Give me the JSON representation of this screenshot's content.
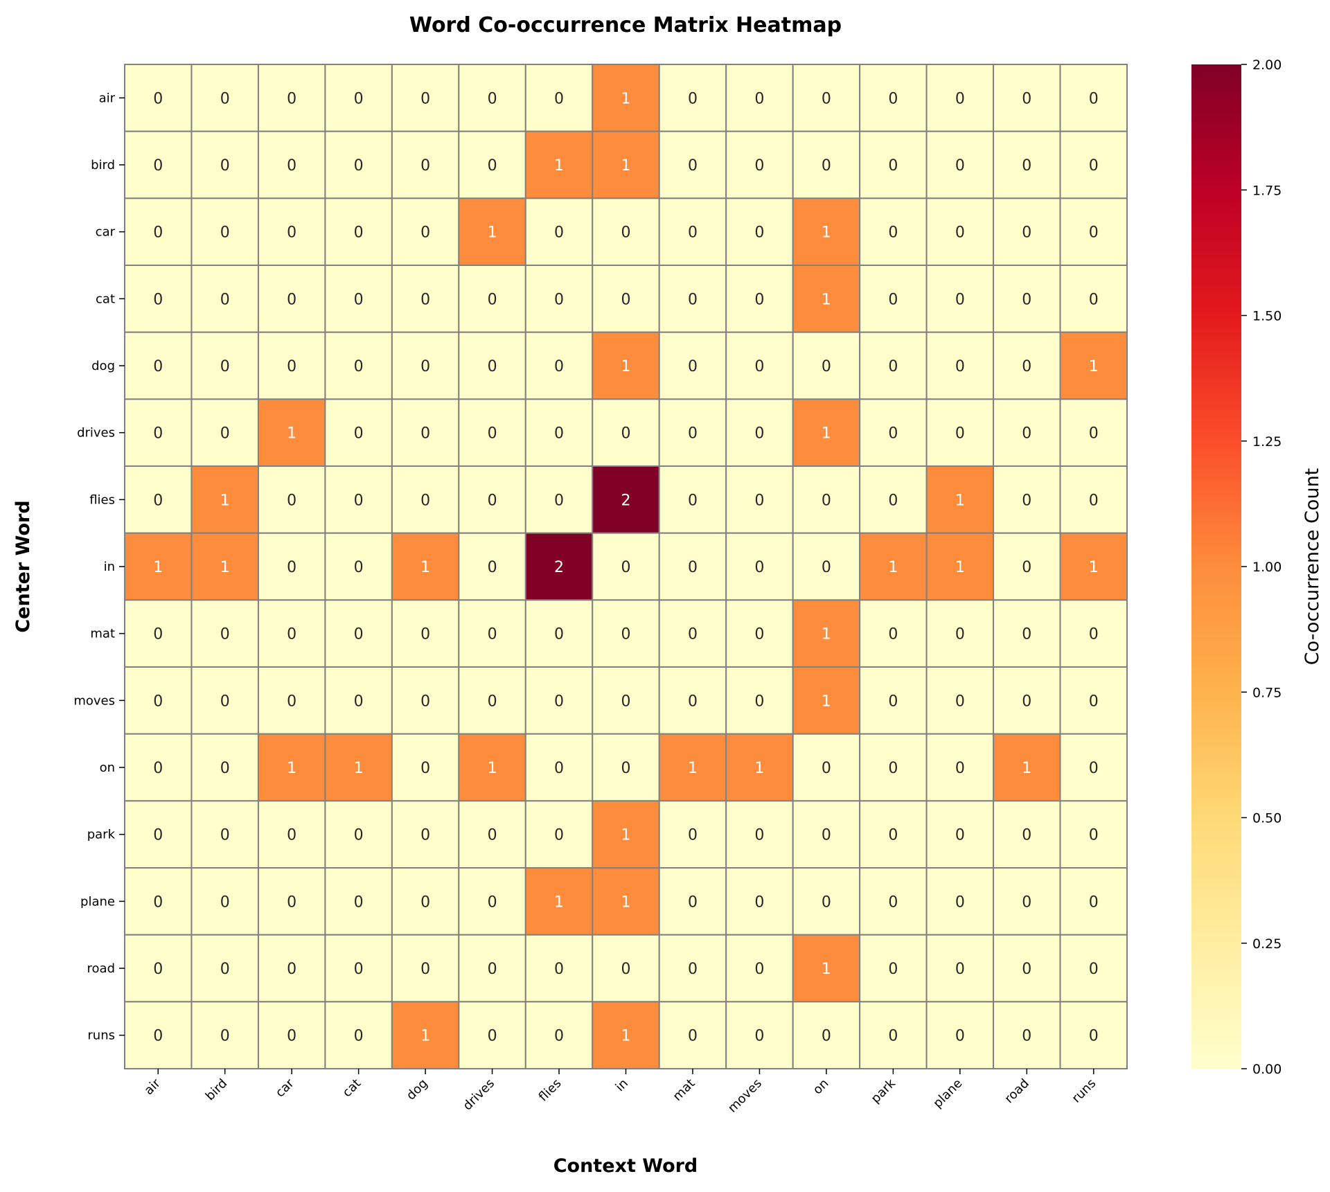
{
  "chart_data": {
    "type": "heatmap",
    "title": "Word Co-occurrence Matrix Heatmap",
    "xlabel": "Context Word",
    "ylabel": "Center Word",
    "colorbar_label": "Co-occurrence Count",
    "colormap": "YlOrRd",
    "colormap_stops": [
      "#ffffcc",
      "#ffeda0",
      "#fed976",
      "#feb24c",
      "#fd8d3c",
      "#fc4e2a",
      "#e31a1c",
      "#bd0026",
      "#800026"
    ],
    "vmin": 0,
    "vmax": 2,
    "colorbar_ticks": [
      "0.00",
      "0.25",
      "0.50",
      "0.75",
      "1.00",
      "1.25",
      "1.50",
      "1.75",
      "2.00"
    ],
    "x_categories": [
      "air",
      "bird",
      "car",
      "cat",
      "dog",
      "drives",
      "flies",
      "in",
      "mat",
      "moves",
      "on",
      "park",
      "plane",
      "road",
      "runs"
    ],
    "y_categories": [
      "air",
      "bird",
      "car",
      "cat",
      "dog",
      "drives",
      "flies",
      "in",
      "mat",
      "moves",
      "on",
      "park",
      "plane",
      "road",
      "runs"
    ],
    "values": [
      [
        0,
        0,
        0,
        0,
        0,
        0,
        0,
        1,
        0,
        0,
        0,
        0,
        0,
        0,
        0
      ],
      [
        0,
        0,
        0,
        0,
        0,
        0,
        1,
        1,
        0,
        0,
        0,
        0,
        0,
        0,
        0
      ],
      [
        0,
        0,
        0,
        0,
        0,
        1,
        0,
        0,
        0,
        0,
        1,
        0,
        0,
        0,
        0
      ],
      [
        0,
        0,
        0,
        0,
        0,
        0,
        0,
        0,
        0,
        0,
        1,
        0,
        0,
        0,
        0
      ],
      [
        0,
        0,
        0,
        0,
        0,
        0,
        0,
        1,
        0,
        0,
        0,
        0,
        0,
        0,
        1
      ],
      [
        0,
        0,
        1,
        0,
        0,
        0,
        0,
        0,
        0,
        0,
        1,
        0,
        0,
        0,
        0
      ],
      [
        0,
        1,
        0,
        0,
        0,
        0,
        0,
        2,
        0,
        0,
        0,
        0,
        1,
        0,
        0
      ],
      [
        1,
        1,
        0,
        0,
        1,
        0,
        2,
        0,
        0,
        0,
        0,
        1,
        1,
        0,
        1
      ],
      [
        0,
        0,
        0,
        0,
        0,
        0,
        0,
        0,
        0,
        0,
        1,
        0,
        0,
        0,
        0
      ],
      [
        0,
        0,
        0,
        0,
        0,
        0,
        0,
        0,
        0,
        0,
        1,
        0,
        0,
        0,
        0
      ],
      [
        0,
        0,
        1,
        1,
        0,
        1,
        0,
        0,
        1,
        1,
        0,
        0,
        0,
        1,
        0
      ],
      [
        0,
        0,
        0,
        0,
        0,
        0,
        0,
        1,
        0,
        0,
        0,
        0,
        0,
        0,
        0
      ],
      [
        0,
        0,
        0,
        0,
        0,
        0,
        1,
        1,
        0,
        0,
        0,
        0,
        0,
        0,
        0
      ],
      [
        0,
        0,
        0,
        0,
        0,
        0,
        0,
        0,
        0,
        0,
        1,
        0,
        0,
        0,
        0
      ],
      [
        0,
        0,
        0,
        0,
        1,
        0,
        0,
        1,
        0,
        0,
        0,
        0,
        0,
        0,
        0
      ]
    ],
    "annotated": true,
    "grid": false
  }
}
